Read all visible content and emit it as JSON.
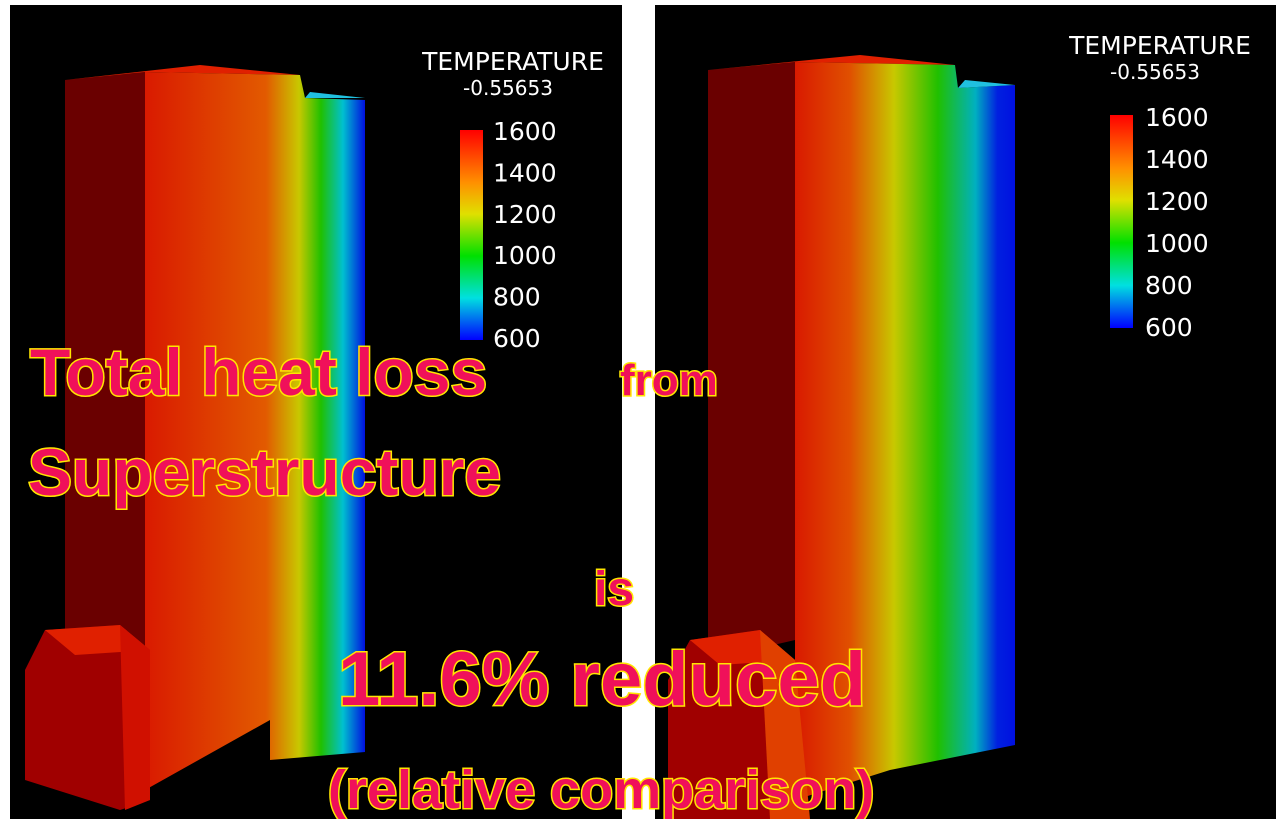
{
  "panels": [
    {
      "legend_title": "TEMPERATURE",
      "legend_subtitle": "-0.55653",
      "ticks": [
        "1600",
        "1400",
        "1200",
        "1000",
        "800",
        "600"
      ]
    },
    {
      "legend_title": "TEMPERATURE",
      "legend_subtitle": "-0.55653",
      "ticks": [
        "1600",
        "1400",
        "1200",
        "1000",
        "800",
        "600"
      ]
    }
  ],
  "overlay": {
    "line1": "Total heat loss",
    "line1_small": "from",
    "line2": "Superstructure",
    "line3": "is",
    "line4": "11.6% reduced",
    "line5": "(relative comparison)"
  }
}
